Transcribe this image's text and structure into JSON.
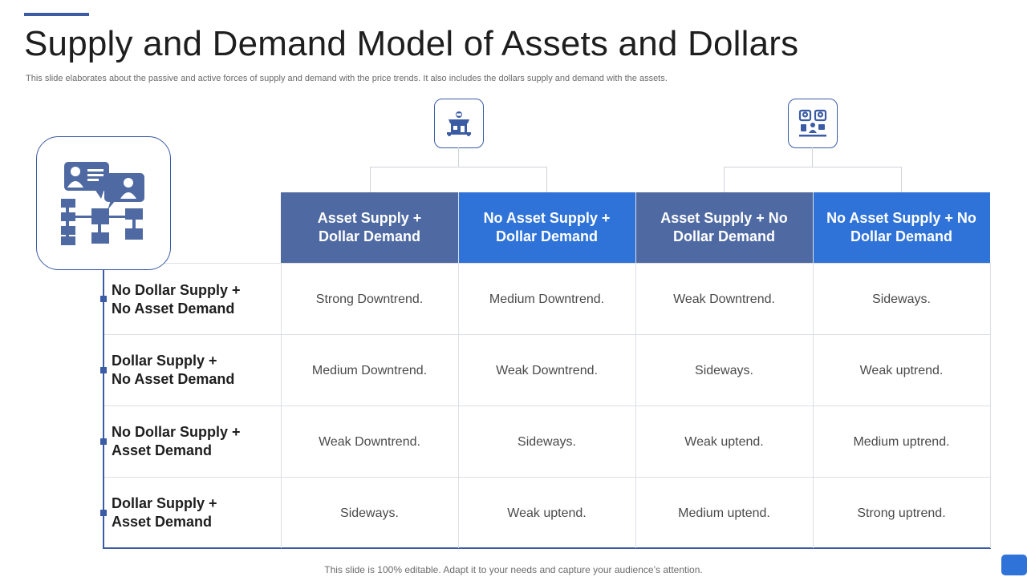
{
  "title": "Supply and Demand Model of Assets and Dollars",
  "subtitle": "This slide elaborates about the passive and active forces of supply and demand with the price trends. It also includes the dollars  supply and demand with the assets.",
  "icons": {
    "main": "people-chat-flowchart-icon",
    "group_left": "market-shop-icon",
    "group_right": "people-presentation-icon"
  },
  "colors": {
    "accent": "#3b5ba5",
    "header_dark": "#4f6aa3",
    "header_bright": "#2f73d9"
  },
  "table": {
    "columns": [
      "Asset Supply +\nDollar Demand",
      "No Asset Supply +\nDollar Demand",
      "Asset Supply + No\nDollar Demand",
      "No Asset Supply + No\nDollar Demand"
    ],
    "rows": [
      {
        "label": "No Dollar Supply +\nNo Asset Demand",
        "cells": [
          "Strong Downtrend.",
          "Medium Downtrend.",
          "Weak Downtrend.",
          "Sideways."
        ]
      },
      {
        "label": "Dollar Supply +\nNo Asset Demand",
        "cells": [
          "Medium Downtrend.",
          "Weak Downtrend.",
          "Sideways.",
          "Weak uptrend."
        ]
      },
      {
        "label": "No Dollar Supply +\nAsset Demand",
        "cells": [
          "Weak Downtrend.",
          "Sideways.",
          "Weak uptend.",
          "Medium uptrend."
        ]
      },
      {
        "label": "Dollar Supply +\nAsset Demand",
        "cells": [
          "Sideways.",
          "Weak uptend.",
          "Medium uptend.",
          "Strong uptrend."
        ]
      }
    ]
  },
  "footer": "This slide is 100% editable. Adapt it to your needs and capture your audience’s attention."
}
